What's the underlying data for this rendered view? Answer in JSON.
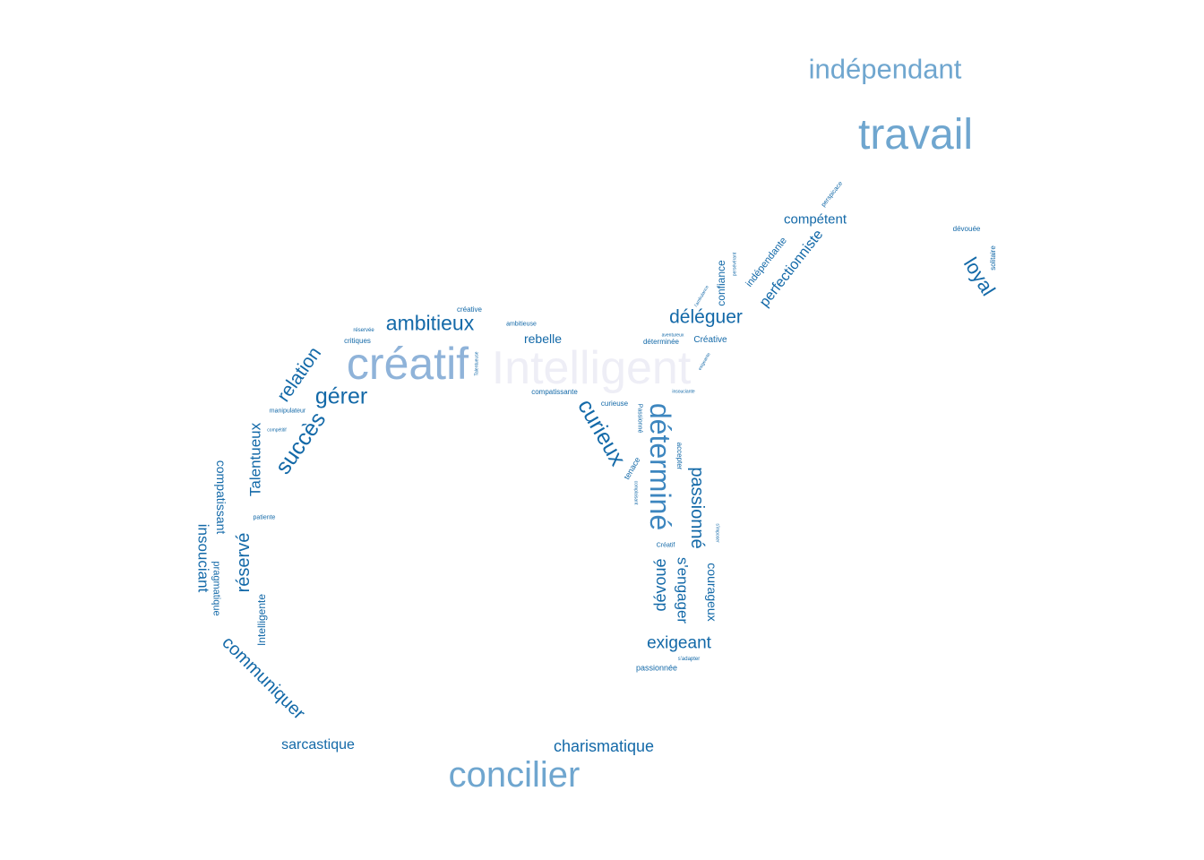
{
  "colors": {
    "light": "#eeeef6",
    "pale": "#8fb3d9",
    "mid": "#6fa6cf",
    "strong": "#3d86bf",
    "deep": "#1369a8"
  },
  "words": [
    {
      "text": "indépendant",
      "tone": "mid"
    },
    {
      "text": "travail",
      "tone": "mid"
    },
    {
      "text": "perspicace",
      "tone": "deep"
    },
    {
      "text": "compétent",
      "tone": "deep"
    },
    {
      "text": "dévouée",
      "tone": "deep"
    },
    {
      "text": "solitaire",
      "tone": "deep"
    },
    {
      "text": "loyal",
      "tone": "deep"
    },
    {
      "text": "perfectionniste",
      "tone": "deep"
    },
    {
      "text": "indépendante",
      "tone": "deep"
    },
    {
      "text": "persévérant",
      "tone": "deep"
    },
    {
      "text": "confiance",
      "tone": "deep"
    },
    {
      "text": "l'ambulance",
      "tone": "deep"
    },
    {
      "text": "déléguer",
      "tone": "deep"
    },
    {
      "text": "aventureux",
      "tone": "deep"
    },
    {
      "text": "déterminée",
      "tone": "deep"
    },
    {
      "text": "Créative",
      "tone": "deep"
    },
    {
      "text": "exigeante",
      "tone": "deep"
    },
    {
      "text": "créative",
      "tone": "deep"
    },
    {
      "text": "ambitieuse",
      "tone": "deep"
    },
    {
      "text": "ambitieux",
      "tone": "deep"
    },
    {
      "text": "rebelle",
      "tone": "deep"
    },
    {
      "text": "réservée",
      "tone": "deep"
    },
    {
      "text": "critiques",
      "tone": "deep"
    },
    {
      "text": "créatif",
      "tone": "pale"
    },
    {
      "text": "Intelligent",
      "tone": "light"
    },
    {
      "text": "Talentueuse",
      "tone": "deep"
    },
    {
      "text": "relation",
      "tone": "deep"
    },
    {
      "text": "gérer",
      "tone": "deep"
    },
    {
      "text": "compatissante",
      "tone": "deep"
    },
    {
      "text": "insouciante",
      "tone": "deep"
    },
    {
      "text": "curieuse",
      "tone": "deep"
    },
    {
      "text": "manipulateur",
      "tone": "deep"
    },
    {
      "text": "succès",
      "tone": "deep"
    },
    {
      "text": "compétitif",
      "tone": "deep"
    },
    {
      "text": "curieux",
      "tone": "deep"
    },
    {
      "text": "Passionné",
      "tone": "deep"
    },
    {
      "text": "déterminé",
      "tone": "strong"
    },
    {
      "text": "accepter",
      "tone": "deep"
    },
    {
      "text": "tenace",
      "tone": "deep"
    },
    {
      "text": "complaisant",
      "tone": "deep"
    },
    {
      "text": "Talentueux",
      "tone": "deep"
    },
    {
      "text": "compatissant",
      "tone": "deep"
    },
    {
      "text": "patiente",
      "tone": "deep"
    },
    {
      "text": "passionné",
      "tone": "deep"
    },
    {
      "text": "s'imposer",
      "tone": "deep"
    },
    {
      "text": "Créatif",
      "tone": "deep"
    },
    {
      "text": "insouciant",
      "tone": "deep"
    },
    {
      "text": "pragmatique",
      "tone": "deep"
    },
    {
      "text": "réservé",
      "tone": "deep"
    },
    {
      "text": "dévoué",
      "tone": "deep"
    },
    {
      "text": "s'engager",
      "tone": "deep"
    },
    {
      "text": "courageux",
      "tone": "deep"
    },
    {
      "text": "Intelligente",
      "tone": "deep"
    },
    {
      "text": "exigeant",
      "tone": "deep"
    },
    {
      "text": "s'adapter",
      "tone": "deep"
    },
    {
      "text": "passionnée",
      "tone": "deep"
    },
    {
      "text": "communiquer",
      "tone": "deep"
    },
    {
      "text": "sarcastique",
      "tone": "deep"
    },
    {
      "text": "charismatique",
      "tone": "deep"
    },
    {
      "text": "concilier",
      "tone": "mid"
    }
  ]
}
